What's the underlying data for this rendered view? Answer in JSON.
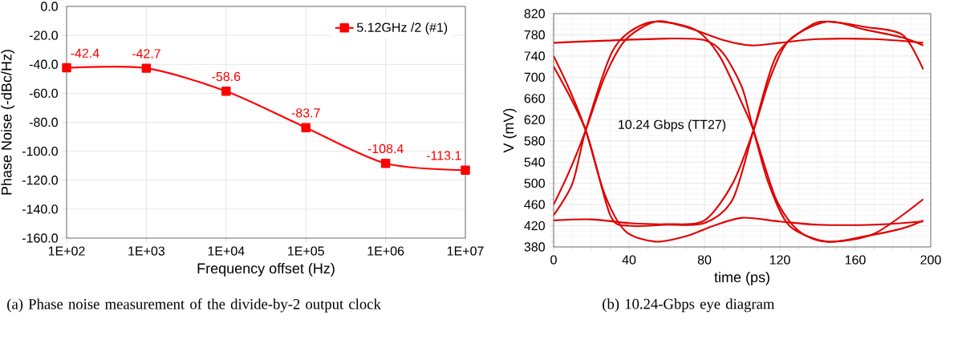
{
  "chart_data": [
    {
      "type": "line",
      "x": [
        100,
        1000,
        10000,
        100000,
        1000000,
        10000000
      ],
      "log": "x",
      "series": [
        {
          "name": "5.12GHz /2 (#1)",
          "color": "#ff0000",
          "values": [
            -42.4,
            -42.7,
            -58.6,
            -83.7,
            -108.4,
            -113.1
          ]
        }
      ],
      "xlim": [
        100,
        10000000
      ],
      "xticks": [
        {
          "value": 100,
          "label": "1E+02"
        },
        {
          "value": 1000,
          "label": "1E+03"
        },
        {
          "value": 10000,
          "label": "1E+04"
        },
        {
          "value": 100000,
          "label": "1E+05"
        },
        {
          "value": 1000000,
          "label": "1E+06"
        },
        {
          "value": 10000000,
          "label": "1E+07"
        }
      ],
      "ylim": [
        -160,
        0
      ],
      "yticks": [
        {
          "value": -160,
          "label": "-160.0"
        },
        {
          "value": -140,
          "label": "-140.0"
        },
        {
          "value": -120,
          "label": "-120.0"
        },
        {
          "value": -100,
          "label": "-100.0"
        },
        {
          "value": -80,
          "label": "-80.0"
        },
        {
          "value": -60,
          "label": "-60.0"
        },
        {
          "value": -40,
          "label": "-40.0"
        },
        {
          "value": -20,
          "label": "-20.0"
        },
        {
          "value": 0,
          "label": "0.0"
        }
      ],
      "xlabel": "Frequency offset (Hz)",
      "ylabel": "Phase Noise (-dBc/Hz)",
      "grid": true,
      "legend": "top right",
      "marker": "square",
      "data_labels": true,
      "annotations": [
        "(a) Phase noise measurement of the divide-by-2 output clock"
      ]
    },
    {
      "type": "line",
      "series": [
        {
          "color": "#e00000",
          "x": [
            0,
            8,
            17,
            27,
            38,
            54,
            70,
            85,
            100,
            120,
            140,
            170,
            196
          ],
          "values": [
            740,
            680,
            600,
            480,
            410,
            390,
            400,
            420,
            435,
            428,
            422,
            422,
            428
          ]
        },
        {
          "color": "#e00000",
          "x": [
            0,
            8,
            17,
            27,
            38,
            54,
            70,
            90,
            105,
            120,
            140,
            170,
            196
          ],
          "values": [
            460,
            520,
            600,
            700,
            770,
            805,
            795,
            770,
            760,
            765,
            772,
            772,
            765
          ]
        },
        {
          "color": "#e00000",
          "x": [
            0,
            20,
            60,
            80,
            90,
            100,
            106,
            114,
            125,
            145,
            165,
            185,
            196
          ],
          "values": [
            765,
            768,
            773,
            770,
            745,
            680,
            600,
            500,
            420,
            390,
            400,
            415,
            430
          ]
        },
        {
          "color": "#e00000",
          "x": [
            0,
            20,
            40,
            60,
            80,
            95,
            106,
            115,
            125,
            145,
            165,
            185,
            196
          ],
          "values": [
            430,
            432,
            425,
            423,
            430,
            500,
            600,
            700,
            770,
            805,
            790,
            775,
            760
          ]
        },
        {
          "color": "#e00000",
          "x": [
            0,
            10,
            17,
            30,
            40,
            54,
            75,
            88,
            100,
            106,
            118,
            130,
            145,
            170,
            196
          ],
          "values": [
            440,
            500,
            600,
            740,
            785,
            805,
            790,
            740,
            650,
            600,
            470,
            410,
            390,
            405,
            470
          ]
        },
        {
          "color": "#e00000",
          "x": [
            0,
            17,
            30,
            40,
            60,
            80,
            95,
            106,
            118,
            135,
            145,
            165,
            185,
            196
          ],
          "values": [
            720,
            600,
            440,
            420,
            422,
            425,
            470,
            600,
            740,
            795,
            805,
            795,
            780,
            715
          ]
        }
      ],
      "xlim": [
        0,
        200
      ],
      "xticks": [
        0,
        40,
        80,
        120,
        160,
        200
      ],
      "ylim": [
        380,
        820
      ],
      "yticks": [
        380,
        420,
        460,
        500,
        540,
        580,
        620,
        660,
        700,
        740,
        780,
        820
      ],
      "xlabel": "time (ps)",
      "ylabel": "V (mV)",
      "grid": true,
      "annotations": [
        "10.24 Gbps (TT27)",
        "(b) 10.24-Gbps eye diagram"
      ]
    }
  ]
}
